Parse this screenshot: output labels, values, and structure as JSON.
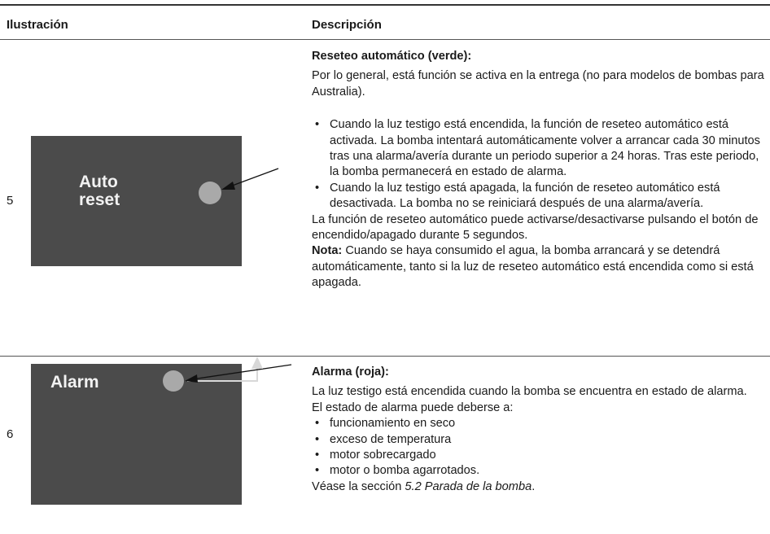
{
  "table": {
    "headers": [
      "Ilustración",
      "Descripción"
    ],
    "rows": [
      {
        "number": "5",
        "illustration": {
          "label_lines": [
            "Auto",
            "reset"
          ]
        },
        "description": {
          "title": "Reseteo automático (verde):",
          "intro": "Por lo general, está función se activa en la entrega (no para modelos de bombas para Australia).",
          "bullets": [
            "Cuando la luz testigo está encendida, la función de reseteo automático está activada. La bomba intentará automáticamente volver a arrancar cada 30 minutos tras una alarma/avería durante un periodo superior a 24 horas. Tras este periodo, la bomba permanecerá en estado de alarma.",
            "Cuando la luz testigo está apagada, la función de reseteo automático está desactivada. La bomba no se reiniciará después de una alarma/avería."
          ],
          "paragraph": "La función de reseteo automático puede activarse/desactivarse pulsando el botón de encendido/apagado durante 5 segundos.",
          "note": {
            "label": "Nota:",
            "text": "Cuando se haya consumido el agua, la bomba arrancará y se detendrá automáticamente, tanto si la luz de reseteo automático está encendida como si está apagada."
          }
        }
      },
      {
        "number": "6",
        "illustration": {
          "label_lines": [
            "Alarm"
          ]
        },
        "description": {
          "title": "Alarma (roja):",
          "paragraphs": [
            "La luz testigo está encendida cuando la bomba se encuentra en estado de alarma.",
            "El estado de alarma puede deberse a:"
          ],
          "bullets": [
            "funcionamiento en seco",
            "exceso de temperatura",
            "motor sobrecargado",
            "motor o bomba agarrotados."
          ],
          "reference": {
            "text": "Véase la sección",
            "section": "5.2 Parada de la bomba",
            "end": "."
          }
        }
      }
    ]
  }
}
